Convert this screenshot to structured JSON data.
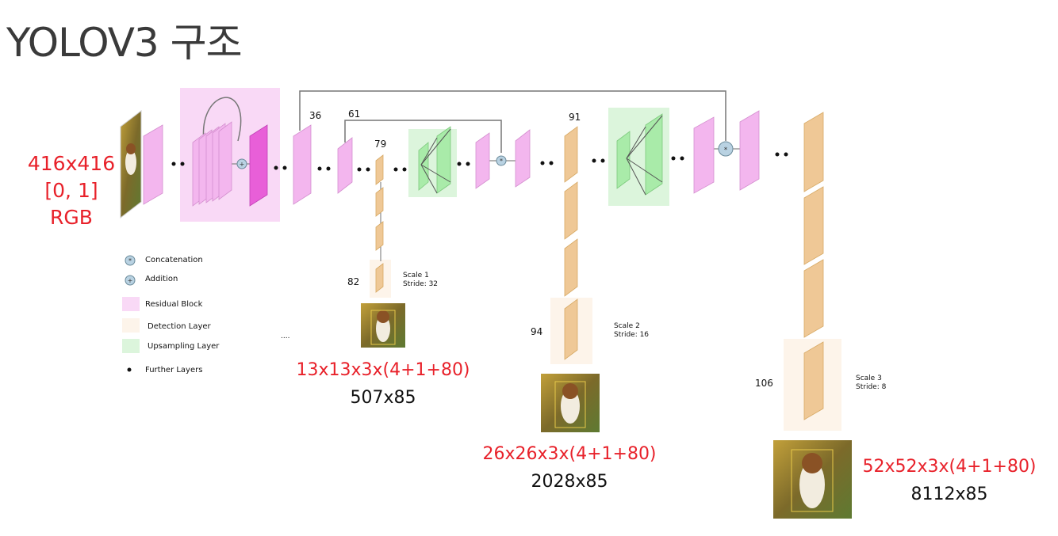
{
  "title": "YOLOV3 구조",
  "input": {
    "line1": "416x416",
    "line2": "[0, 1]",
    "line3": "RGB"
  },
  "layer_labels": {
    "l36": "36",
    "l61": "61",
    "l79": "79",
    "l91": "91",
    "l82": "82",
    "l94": "94",
    "l106": "106"
  },
  "scales": [
    {
      "title": "Scale 1",
      "stride": "Stride: 32",
      "output": "13x13x3x(4+1+80)",
      "size": "507x85"
    },
    {
      "title": "Scale 2",
      "stride": "Stride: 16",
      "output": "26x26x3x(4+1+80)",
      "size": "2028x85"
    },
    {
      "title": "Scale 3",
      "stride": "Stride: 8",
      "output": "52x52x3x(4+1+80)",
      "size": "8112x85"
    }
  ],
  "legend": {
    "concatenation": "Concatenation",
    "addition": "Addition",
    "residual": "Residual Block",
    "detection": "Detection Layer",
    "upsampling": "Upsampling Layer",
    "further": "Further Layers",
    "ellipsis": "...."
  },
  "colors": {
    "residual_fill": "#f9d9f6",
    "detection_fill": "#fdf4ea",
    "upsampling_fill": "#dcf5dc",
    "layer_pink": "#f3b6ee",
    "layer_magenta": "#e85fd8",
    "layer_tan": "#efc896",
    "layer_green": "#a9eba9",
    "output_red": "#e8212a"
  }
}
